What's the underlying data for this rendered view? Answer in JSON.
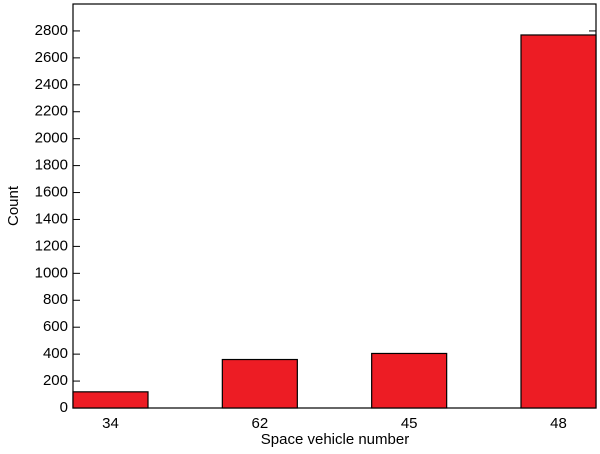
{
  "chart_data": {
    "type": "bar",
    "x_label": "Space vehicle number",
    "y_label": "Count",
    "categories": [
      "34",
      "62",
      "45",
      "48"
    ],
    "values": [
      120,
      360,
      405,
      2770
    ],
    "color": "#ed1c24",
    "ylim": [
      0,
      3000
    ],
    "yticks": [
      0,
      200,
      400,
      600,
      800,
      1000,
      1200,
      1400,
      1600,
      1800,
      2000,
      2200,
      2400,
      2600,
      2800
    ]
  }
}
